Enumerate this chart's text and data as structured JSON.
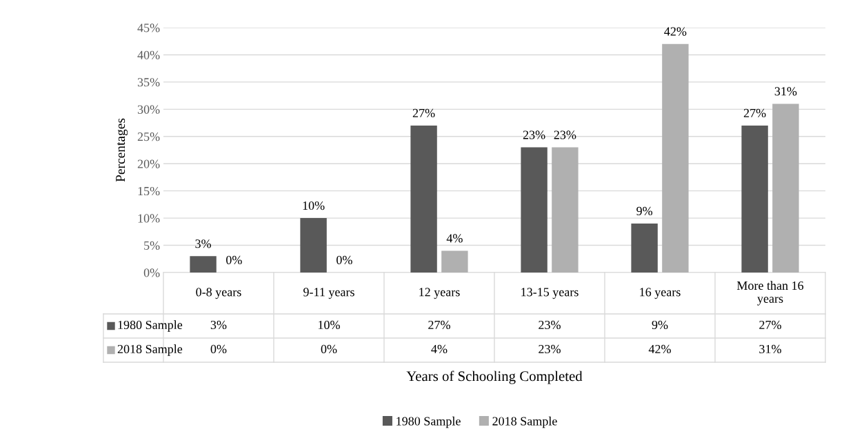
{
  "chart_data": {
    "type": "bar",
    "xlabel": "Years of Schooling Completed",
    "ylabel": "Percentages",
    "categories": [
      "0-8 years",
      "9-11 years",
      "12 years",
      "13-15 years",
      "16 years",
      "More than 16\nyears"
    ],
    "series": [
      {
        "name": "1980 Sample",
        "color": "#595959",
        "values": [
          3,
          10,
          27,
          23,
          9,
          27
        ],
        "value_labels": [
          "3%",
          "10%",
          "27%",
          "23%",
          "9%",
          "27%"
        ]
      },
      {
        "name": "2018 Sample",
        "color": "#b0b0b0",
        "values": [
          0,
          0,
          4,
          23,
          42,
          31
        ],
        "value_labels": [
          "0%",
          "0%",
          "4%",
          "23%",
          "42%",
          "31%"
        ]
      }
    ],
    "ylim": [
      0,
      45
    ],
    "yticks": [
      {
        "value": 0,
        "label": "0%"
      },
      {
        "value": 5,
        "label": "5%"
      },
      {
        "value": 10,
        "label": "10%"
      },
      {
        "value": 15,
        "label": "15%"
      },
      {
        "value": 20,
        "label": "20%"
      },
      {
        "value": 25,
        "label": "25%"
      },
      {
        "value": 30,
        "label": "30%"
      },
      {
        "value": 35,
        "label": "35%"
      },
      {
        "value": 40,
        "label": "40%"
      },
      {
        "value": 45,
        "label": "45%"
      }
    ],
    "grid": "y",
    "legend": "bottom"
  }
}
